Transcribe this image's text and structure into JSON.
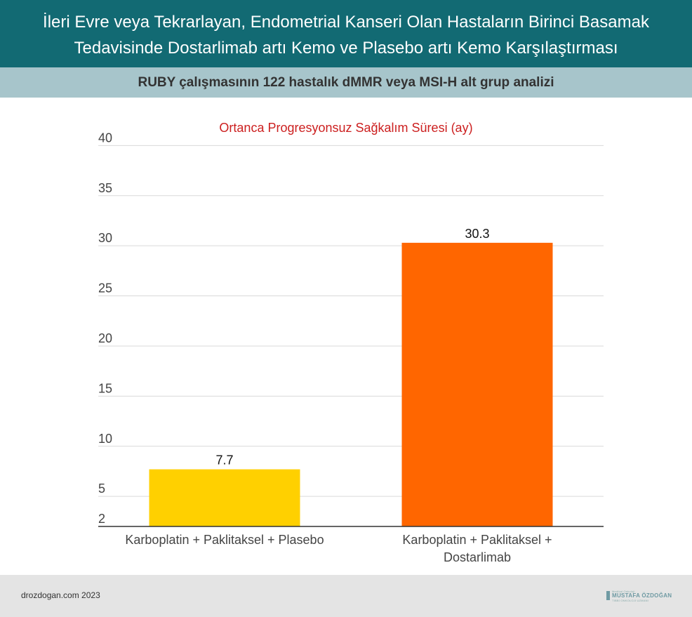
{
  "header": {
    "title_line1": "İleri Evre veya Tekrarlayan, Endometrial Kanseri Olan Hastaların Birinci Basamak",
    "title_line2": "Tedavisinde Dostarlimab artı Kemo ve Plasebo artı Kemo Karşılaştırması"
  },
  "subheader": {
    "text": "RUBY çalışmasının 122 hastalık dMMR veya MSI-H alt grup analizi"
  },
  "chart_data": {
    "type": "bar",
    "title": "Ortanca Progresyonsuz Sağkalım Süresi (ay)",
    "categories": [
      [
        "Karboplatin + Paklitaksel + Plasebo"
      ],
      [
        "Karboplatin + Paklitaksel +",
        "Dostarlimab"
      ]
    ],
    "values": [
      7.7,
      30.3
    ],
    "value_labels": [
      "7.7",
      "30.3"
    ],
    "colors": [
      "#ffd000",
      "#ff6600"
    ],
    "yticks": [
      2,
      5,
      10,
      15,
      20,
      25,
      30,
      35,
      40
    ],
    "ylim": [
      2,
      40
    ],
    "grid": true,
    "title_color": "#cc1f1f",
    "xlabel": "",
    "ylabel": ""
  },
  "footer": {
    "credit": "drozdogan.com 2023",
    "logo_top": "Medikal Onkoloji",
    "logo_name": "MUSTAFA ÖZDOĞAN",
    "logo_sub": "TIBBİ ONKOLOJİ UZMANI"
  }
}
